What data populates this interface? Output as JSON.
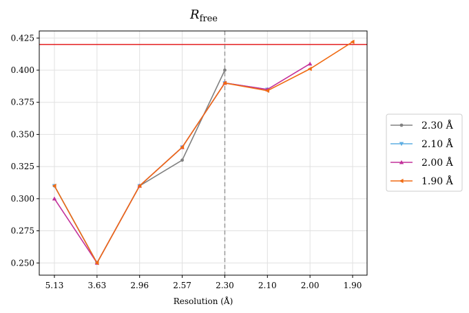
{
  "chart_data": {
    "type": "line",
    "title": "R",
    "title_subscript": "free",
    "xlabel": "Resolution (Å)",
    "ylabel": "",
    "categories": [
      "5.13",
      "3.63",
      "2.96",
      "2.57",
      "2.30",
      "2.10",
      "2.00",
      "1.90"
    ],
    "ylim": [
      0.2405,
      0.4305
    ],
    "yticks": [
      "0.250",
      "0.275",
      "0.300",
      "0.325",
      "0.350",
      "0.375",
      "0.400",
      "0.425"
    ],
    "grid": true,
    "legend_position": "right",
    "hline": {
      "y": 0.42,
      "color": "#e31a1c"
    },
    "vline": {
      "category": "2.30",
      "color": "#999999",
      "style": "dashed"
    },
    "series": [
      {
        "name": "2.30 Å",
        "color": "#808080",
        "marker": "circle",
        "values": [
          0.31,
          0.25,
          0.31,
          0.33,
          0.4,
          null,
          null,
          null
        ]
      },
      {
        "name": "2.10 Å",
        "color": "#5dade2",
        "marker": "triangle-down",
        "values": [
          0.31,
          0.25,
          0.31,
          0.34,
          0.39,
          0.385,
          null,
          null
        ]
      },
      {
        "name": "2.00 Å",
        "color": "#c2309a",
        "marker": "triangle-up",
        "values": [
          0.3,
          0.25,
          0.31,
          0.34,
          0.39,
          0.385,
          0.405,
          null
        ]
      },
      {
        "name": "1.90 Å",
        "color": "#f06a12",
        "marker": "triangle-left",
        "values": [
          0.31,
          0.25,
          0.31,
          0.34,
          0.39,
          0.384,
          0.401,
          0.422
        ]
      }
    ]
  }
}
